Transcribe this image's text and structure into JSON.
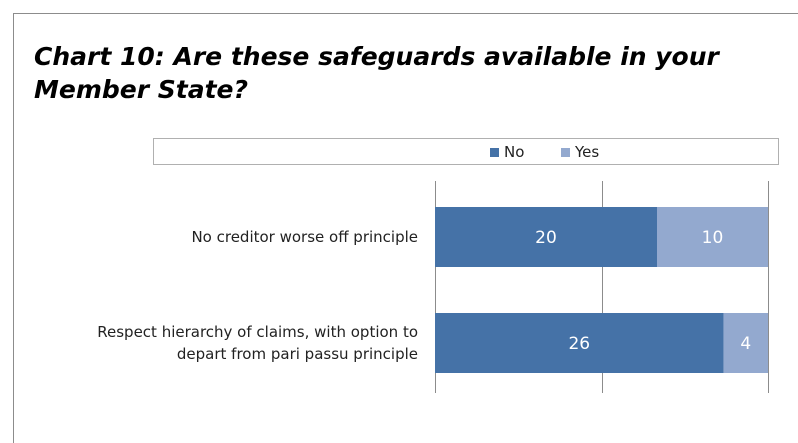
{
  "title": "Chart 10: Are these safeguards available in your Member State?",
  "colors": {
    "no": "#4572a7",
    "yes": "#93a9cf"
  },
  "chart_data": {
    "type": "bar",
    "orientation": "horizontal",
    "stacked": true,
    "categories": [
      "No creditor worse off principle",
      "Respect hierarchy of claims, with option to depart from pari passu principle"
    ],
    "category_label_lines": [
      [
        "No creditor worse off principle"
      ],
      [
        "Respect hierarchy of claims, with option to",
        "depart from pari passu principle"
      ]
    ],
    "series": [
      {
        "name": "No",
        "values": [
          20,
          26
        ]
      },
      {
        "name": "Yes",
        "values": [
          10,
          4
        ]
      }
    ],
    "xlim": [
      0,
      30
    ],
    "x_gridlines": [
      0,
      15,
      30
    ],
    "legend_position": "top",
    "data_labels": true
  }
}
